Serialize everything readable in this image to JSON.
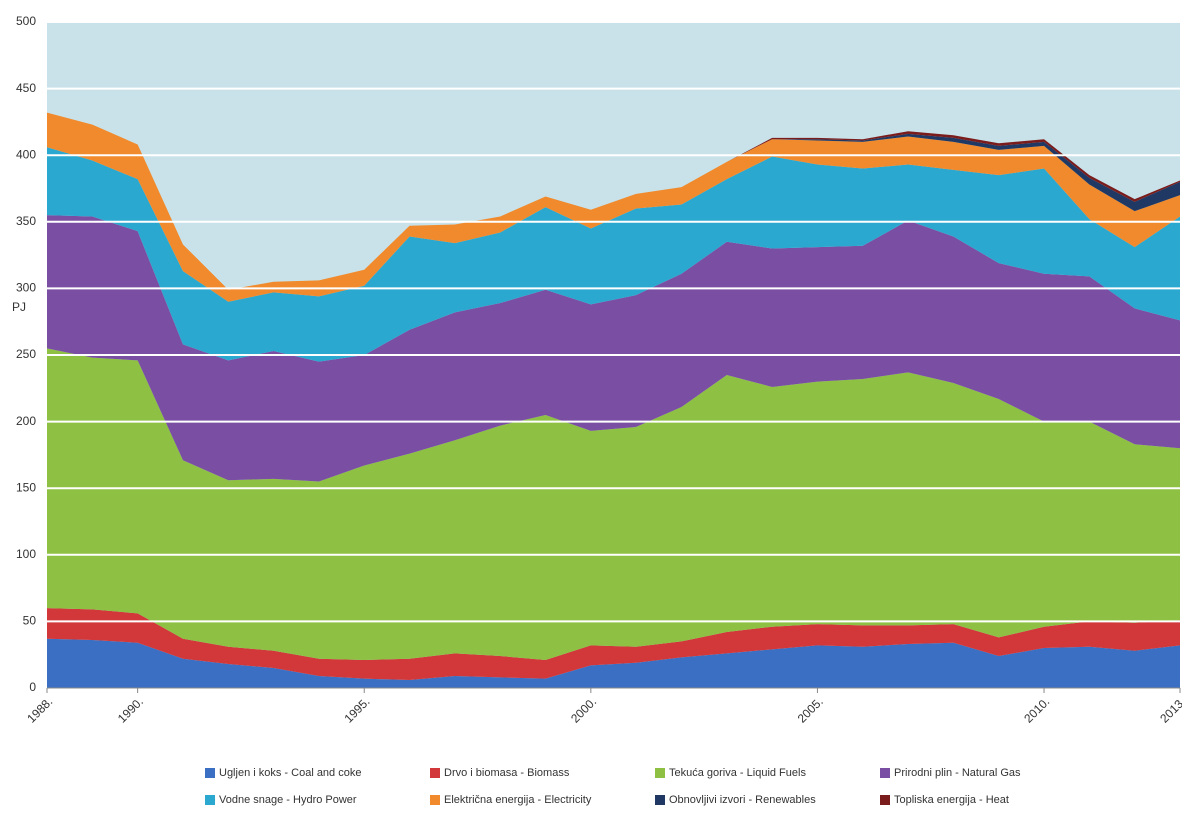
{
  "chart_data": {
    "type": "stacked_area",
    "ylabel": "PJ",
    "x": [
      1988,
      1989,
      1990,
      1991,
      1992,
      1993,
      1994,
      1995,
      1996,
      1997,
      1998,
      1999,
      2000,
      2001,
      2002,
      2003,
      2004,
      2005,
      2006,
      2007,
      2008,
      2009,
      2010,
      2011,
      2012,
      2013
    ],
    "xlim": [
      1988,
      2013
    ],
    "xticks": [
      {
        "value": 1988,
        "label": "1988."
      },
      {
        "value": 1990,
        "label": "1990."
      },
      {
        "value": 1995,
        "label": "1995."
      },
      {
        "value": 2000,
        "label": "2000."
      },
      {
        "value": 2005,
        "label": "2005."
      },
      {
        "value": 2010,
        "label": "2010."
      },
      {
        "value": 2013,
        "label": "2013."
      }
    ],
    "ylim": [
      0,
      500
    ],
    "yticks": [
      0,
      50,
      100,
      150,
      200,
      250,
      300,
      350,
      400,
      450,
      500
    ],
    "grid": true,
    "legend": "bottom",
    "series": [
      {
        "name": "Ugljen i koks - Coal and coke",
        "color": "#3a6fc4",
        "values": [
          37,
          36,
          34,
          22,
          18,
          15,
          9,
          7,
          6,
          9,
          8,
          7,
          17,
          19,
          23,
          26,
          29,
          32,
          31,
          33,
          34,
          24,
          30,
          31,
          28,
          32
        ]
      },
      {
        "name": "Drvo i biomasa - Biomass",
        "color": "#d2373a",
        "values": [
          23,
          23,
          22,
          15,
          13,
          13,
          13,
          14,
          16,
          17,
          16,
          14,
          15,
          12,
          12,
          16,
          17,
          16,
          16,
          14,
          14,
          14,
          16,
          19,
          21,
          19
        ]
      },
      {
        "name": "Tekuća goriva - Liquid Fuels",
        "color": "#8dc043",
        "values": [
          195,
          189,
          190,
          134,
          125,
          129,
          133,
          146,
          154,
          160,
          173,
          184,
          161,
          165,
          176,
          193,
          180,
          182,
          185,
          190,
          181,
          179,
          154,
          150,
          134,
          129
        ]
      },
      {
        "name": "Prirodni plin - Natural Gas",
        "color": "#7a4fa3",
        "values": [
          100,
          106,
          97,
          87,
          90,
          96,
          90,
          83,
          93,
          96,
          92,
          94,
          95,
          99,
          100,
          100,
          104,
          101,
          100,
          114,
          110,
          102,
          111,
          109,
          102,
          96
        ]
      },
      {
        "name": "Vodne snage - Hydro Power",
        "color": "#2aa8cf",
        "values": [
          51,
          42,
          39,
          55,
          44,
          44,
          49,
          52,
          70,
          52,
          53,
          62,
          57,
          65,
          52,
          47,
          69,
          62,
          58,
          42,
          50,
          66,
          79,
          43,
          46,
          78
        ]
      },
      {
        "name": "Električna energija - Electricity",
        "color": "#f08a2c",
        "values": [
          26,
          27,
          26,
          20,
          9,
          8,
          12,
          12,
          8,
          14,
          12,
          8,
          14,
          11,
          13,
          13,
          13,
          18,
          20,
          21,
          21,
          19,
          17,
          26,
          27,
          16
        ]
      },
      {
        "name": "Obnovljivi izvori - Renewables",
        "color": "#1f3864",
        "values": [
          0,
          0,
          0,
          0,
          0,
          0,
          0,
          0,
          0,
          0,
          0,
          0,
          0,
          0,
          0,
          0,
          0,
          1,
          1,
          2,
          3,
          3,
          3,
          5,
          7,
          10
        ]
      },
      {
        "name": "Topliska energija - Heat",
        "color": "#7b1c1c",
        "values": [
          0,
          0,
          0,
          0,
          0,
          0,
          0,
          0,
          0,
          0,
          0,
          0,
          0,
          0,
          0,
          0,
          1,
          1,
          1,
          2,
          2,
          2,
          2,
          2,
          2,
          1
        ]
      }
    ]
  }
}
